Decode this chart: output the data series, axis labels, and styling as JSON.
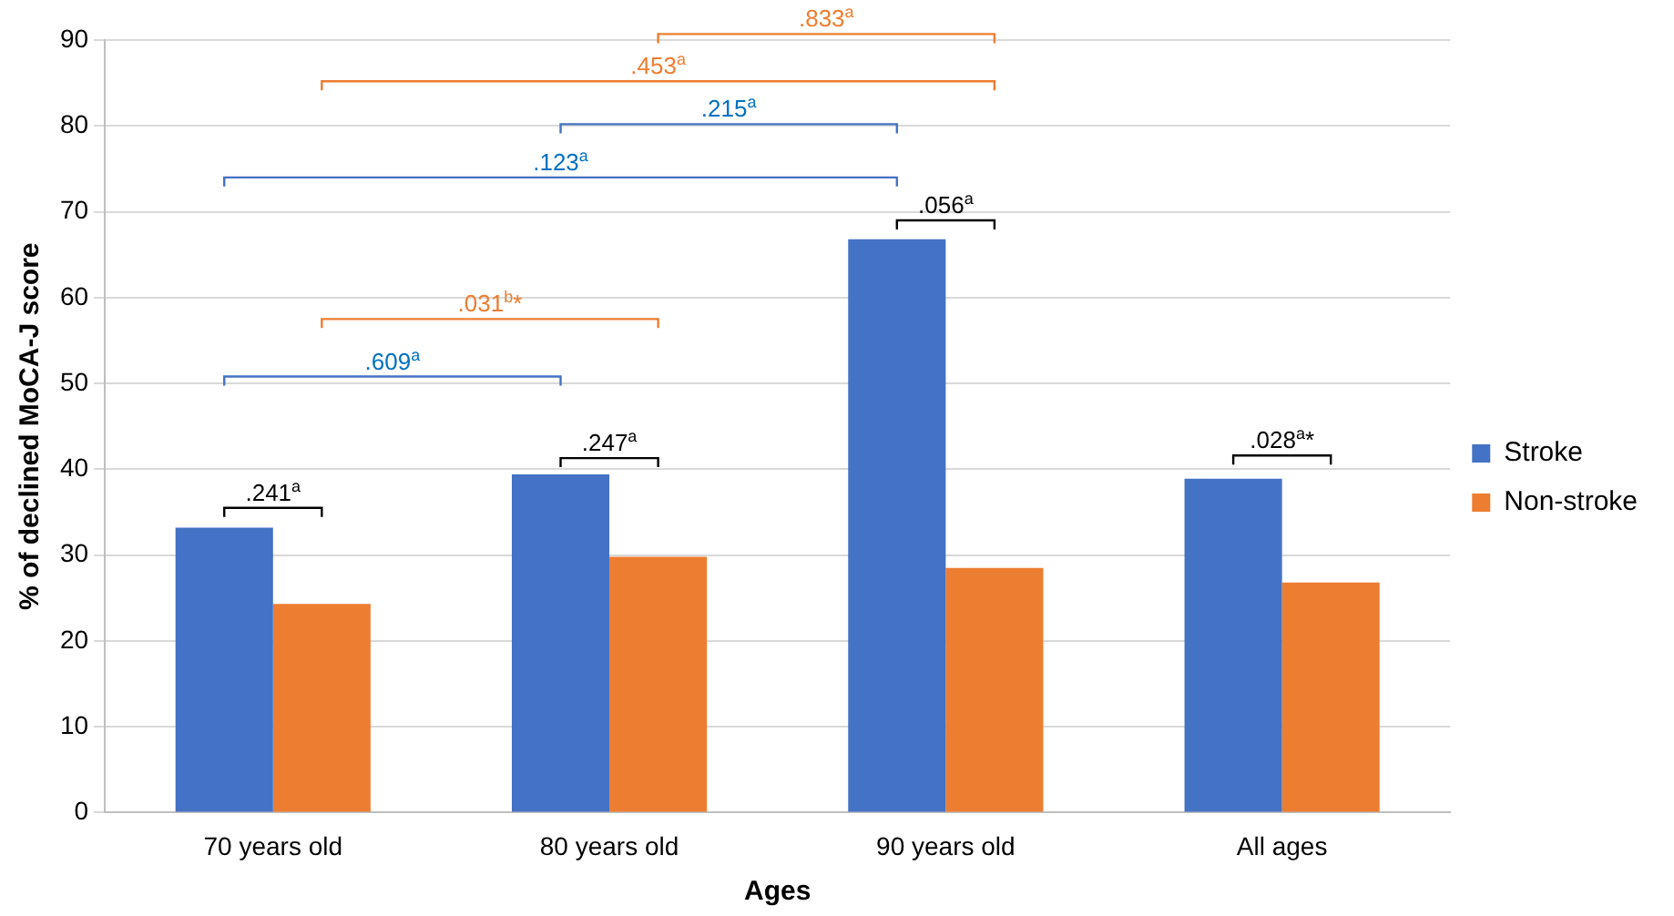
{
  "chart_data": {
    "type": "bar",
    "xlabel": "Ages",
    "ylabel": "% of declined MoCA-J score",
    "categories": [
      "70 years old",
      "80 years old",
      "90 years old",
      "All ages"
    ],
    "series": [
      {
        "name": "Stroke",
        "color": "#4472c4",
        "values": [
          33.2,
          39.4,
          66.8,
          38.9
        ]
      },
      {
        "name": "Non-stroke",
        "color": "#ed7d31",
        "values": [
          24.3,
          29.8,
          28.5,
          26.8
        ]
      }
    ],
    "ylim": [
      0,
      90
    ],
    "yticks": [
      0,
      10,
      20,
      30,
      40,
      50,
      60,
      70,
      80,
      90
    ],
    "grid": "y",
    "legend": "right",
    "annotations": [
      ".833$^{a}$",
      ".453$^{a}$",
      ".215$^{a}$",
      ".123$^{a}$",
      ".056$^{a}$",
      ".031$^{b}$*",
      ".609$^{a}$",
      ".247$^{a}$",
      ".028$^{a}$*",
      ".241$^{a}$"
    ]
  }
}
